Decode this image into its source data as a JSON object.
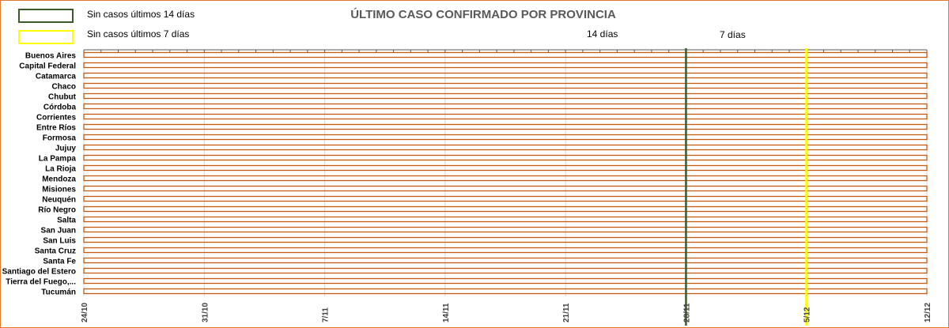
{
  "title": "ÚLTIMO CASO CONFIRMADO POR PROVINCIA",
  "legend": [
    {
      "label": "Sin casos últimos 14 días",
      "color": "#3a5a2e"
    },
    {
      "label": "Sin casos últimos 7 días",
      "color": "#ffff00"
    }
  ],
  "reference_lines": [
    {
      "label": "14 días",
      "date": "28/11",
      "color": "#3a5a2e"
    },
    {
      "label": "7 días",
      "date": "5/12",
      "color": "#ffff00"
    }
  ],
  "colors": {
    "bar": "#c55a11",
    "border": "#e07a2e",
    "grid": "#d9d9d9",
    "text": "#000000"
  },
  "chart_data": {
    "type": "bar",
    "orientation": "horizontal",
    "title": "ÚLTIMO CASO CONFIRMADO POR PROVINCIA",
    "categories": [
      "Buenos Aires",
      "Capital Federal",
      "Catamarca",
      "Chaco",
      "Chubut",
      "Córdoba",
      "Corrientes",
      "Entre Ríos",
      "Formosa",
      "Jujuy",
      "La Pampa",
      "La Rioja",
      "Mendoza",
      "Misiones",
      "Neuquén",
      "Río Negro",
      "Salta",
      "San Juan",
      "San Luis",
      "Santa Cruz",
      "Santa Fe",
      "Santiago del Estero",
      "Tierra del Fuego,...",
      "Tucumán"
    ],
    "x_ticks": [
      "24/10",
      "31/10",
      "7/11",
      "14/11",
      "21/11",
      "28/11",
      "5/12",
      "12/12"
    ],
    "xlim": [
      "24/10",
      "12/12"
    ],
    "values": [
      "12/12",
      "12/12",
      "12/12",
      "12/12",
      "12/12",
      "12/12",
      "12/12",
      "12/12",
      "12/12",
      "12/12",
      "12/12",
      "12/12",
      "12/12",
      "12/12",
      "12/12",
      "12/12",
      "12/12",
      "12/12",
      "12/12",
      "12/12",
      "12/12",
      "12/12",
      "12/12",
      "12/12"
    ],
    "grid": true
  }
}
